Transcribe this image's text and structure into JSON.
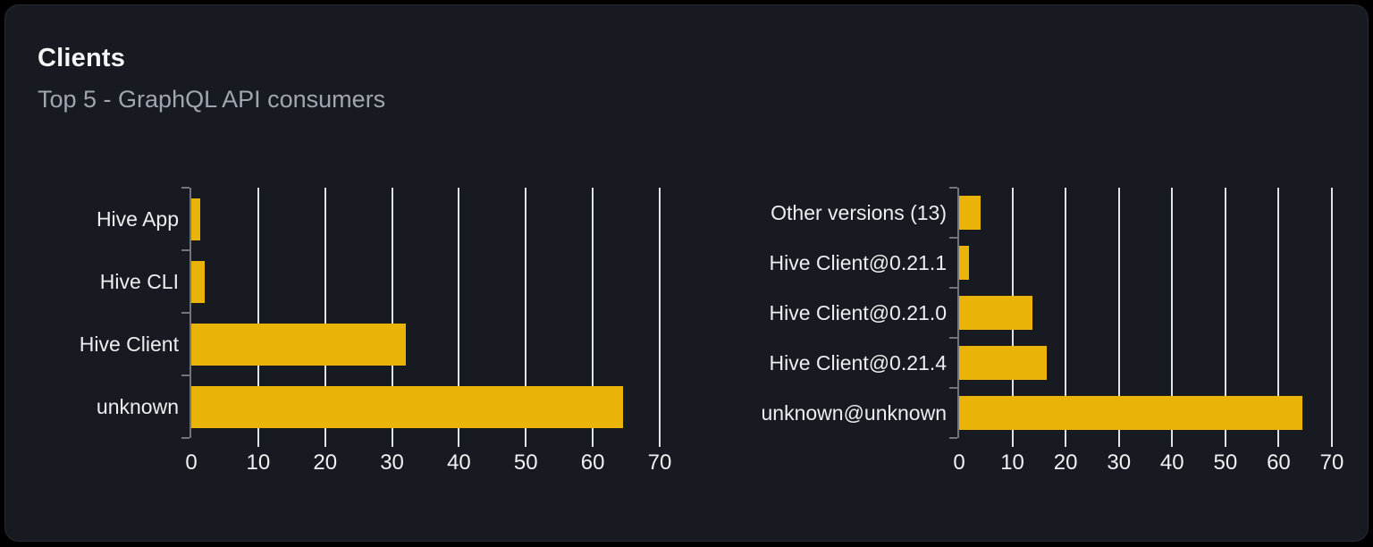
{
  "card": {
    "title": "Clients",
    "subtitle": "Top 5 - GraphQL API consumers"
  },
  "colors": {
    "page_bg": "#000000",
    "card_bg": "#171a20",
    "card_border": "#272b33",
    "bar": "#eab308",
    "grid": "#dfe3ec",
    "axis": "#71767e",
    "category_label": "#eceef1",
    "tick_label": "#eff1f4",
    "title": "#f5f6f8",
    "subtitle": "#a0a6b0"
  },
  "chart_data": [
    {
      "type": "bar",
      "orientation": "horizontal",
      "title": "",
      "xlabel": "",
      "ylabel": "",
      "categories": [
        "Hive App",
        "Hive CLI",
        "Hive Client",
        "unknown"
      ],
      "values": [
        1.4,
        2,
        32,
        64.5
      ],
      "xlim": [
        0,
        70
      ],
      "xticks": [
        0,
        10,
        20,
        30,
        40,
        50,
        60,
        70
      ],
      "grid": true,
      "legend": false
    },
    {
      "type": "bar",
      "orientation": "horizontal",
      "title": "",
      "xlabel": "",
      "ylabel": "",
      "categories": [
        "Other versions (13)",
        "Hive Client@0.21.1",
        "Hive Client@0.21.0",
        "Hive Client@0.21.4",
        "unknown@unknown"
      ],
      "values": [
        4,
        1.8,
        13.7,
        16.4,
        64.5
      ],
      "xlim": [
        0,
        70
      ],
      "xticks": [
        0,
        10,
        20,
        30,
        40,
        50,
        60,
        70
      ],
      "grid": true,
      "legend": false
    }
  ]
}
